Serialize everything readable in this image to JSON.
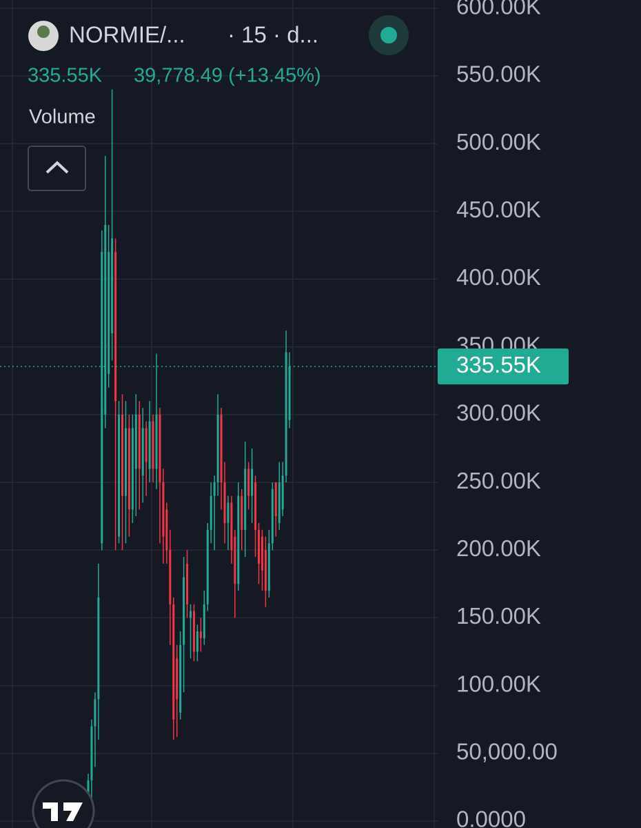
{
  "header": {
    "symbol": "NORMIE/...",
    "interval": "· 15 · d...",
    "last": "335.55K",
    "change": "39,778.49 (+13.45%)",
    "indicator": "Volume"
  },
  "chart_data": {
    "type": "candlestick",
    "up_color": "#22ab94",
    "down_color": "#f23645",
    "ylim": [
      -5100,
      606000
    ],
    "yticks": [
      {
        "value": 0,
        "label": "0.0000"
      },
      {
        "value": 50000,
        "label": "50,000.00"
      },
      {
        "value": 100000,
        "label": "100.00K"
      },
      {
        "value": 150000,
        "label": "150.00K"
      },
      {
        "value": 200000,
        "label": "200.00K"
      },
      {
        "value": 250000,
        "label": "250.00K"
      },
      {
        "value": 300000,
        "label": "300.00K"
      },
      {
        "value": 350000,
        "label": "350.00K"
      },
      {
        "value": 400000,
        "label": "400.00K"
      },
      {
        "value": 450000,
        "label": "450.00K"
      },
      {
        "value": 500000,
        "label": "500.00K"
      },
      {
        "value": 550000,
        "label": "550.00K"
      },
      {
        "value": 600000,
        "label": "600.00K"
      }
    ],
    "grid": true,
    "last_price": {
      "value": 335550,
      "label": "335.55K"
    },
    "open": [
      20000,
      30000,
      70000,
      90000,
      205000,
      300000,
      330000,
      360000,
      420000,
      210000,
      300000,
      240000,
      290000,
      230000,
      260000,
      300000,
      255000,
      290000,
      260000,
      295000,
      260000,
      300000,
      250000,
      230000,
      200000,
      160000,
      120000,
      80000,
      130000,
      190000,
      150000,
      155000,
      125000,
      140000,
      135000,
      160000,
      215000,
      240000,
      250000,
      300000,
      250000,
      220000,
      235000,
      210000,
      175000,
      240000,
      215000,
      260000,
      240000,
      250000,
      215000,
      210000,
      200000,
      170000,
      205000,
      250000,
      220000,
      230000,
      255000,
      296000
    ],
    "high": [
      35000,
      75000,
      95000,
      190000,
      436000,
      491000,
      440000,
      540000,
      430000,
      310000,
      315000,
      310000,
      300000,
      300000,
      315000,
      310000,
      305000,
      295000,
      310000,
      300000,
      345000,
      305000,
      260000,
      235000,
      215000,
      165000,
      130000,
      140000,
      195000,
      200000,
      160000,
      160000,
      145000,
      150000,
      170000,
      220000,
      250000,
      255000,
      315000,
      305000,
      265000,
      240000,
      240000,
      215000,
      250000,
      245000,
      280000,
      265000,
      275000,
      255000,
      220000,
      215000,
      210000,
      215000,
      250000,
      250000,
      265000,
      265000,
      362000,
      346000
    ],
    "low": [
      5000,
      10000,
      40000,
      60000,
      200000,
      290000,
      320000,
      340000,
      200000,
      205000,
      200000,
      205000,
      210000,
      220000,
      225000,
      230000,
      235000,
      240000,
      250000,
      250000,
      245000,
      205000,
      190000,
      190000,
      130000,
      60000,
      62000,
      75000,
      95000,
      150000,
      120000,
      118000,
      118000,
      125000,
      130000,
      155000,
      205000,
      200000,
      240000,
      230000,
      205000,
      200000,
      190000,
      150000,
      170000,
      200000,
      195000,
      230000,
      220000,
      195000,
      175000,
      170000,
      158000,
      165000,
      200000,
      210000,
      215000,
      225000,
      250000,
      290000
    ],
    "close": [
      30000,
      70000,
      90000,
      165000,
      420000,
      440000,
      420000,
      430000,
      310000,
      300000,
      240000,
      290000,
      230000,
      290000,
      300000,
      260000,
      290000,
      265000,
      295000,
      260000,
      300000,
      250000,
      210000,
      200000,
      160000,
      75000,
      90000,
      130000,
      180000,
      160000,
      155000,
      125000,
      140000,
      135000,
      160000,
      215000,
      240000,
      250000,
      300000,
      250000,
      220000,
      235000,
      200000,
      175000,
      240000,
      215000,
      260000,
      240000,
      260000,
      215000,
      190000,
      185000,
      170000,
      205000,
      245000,
      225000,
      250000,
      255000,
      346000,
      335550
    ]
  }
}
